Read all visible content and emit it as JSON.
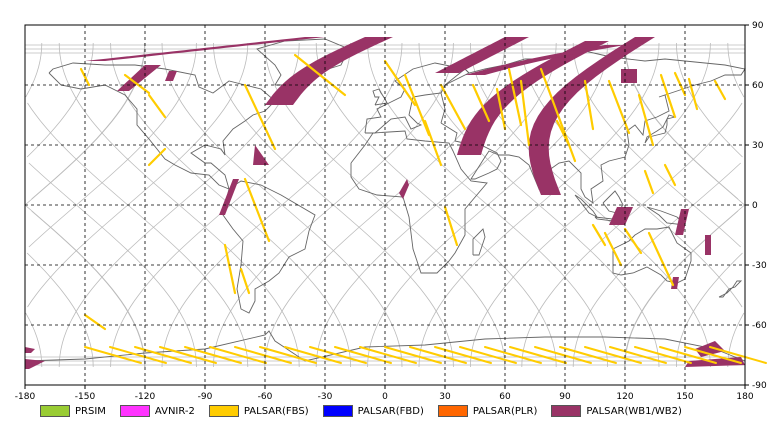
{
  "map": {
    "x_ticks": [
      "-180",
      "-150",
      "-120",
      "-90",
      "-60",
      "-30",
      "0",
      "30",
      "60",
      "90",
      "120",
      "150",
      "180"
    ],
    "y_ticks": [
      "90",
      "60",
      "30",
      "0",
      "-30",
      "-60",
      "-90"
    ],
    "grid_style": "dashed"
  },
  "legend": [
    {
      "label": "PRSIM",
      "color": "#99cc33"
    },
    {
      "label": "AVNIR-2",
      "color": "#ff33ff"
    },
    {
      "label": "PALSAR(FBS)",
      "color": "#ffcc00"
    },
    {
      "label": "PALSAR(FBD)",
      "color": "#0000ff"
    },
    {
      "label": "PALSAR(PLR)",
      "color": "#ff6600"
    },
    {
      "label": "PALSAR(WB1/WB2)",
      "color": "#993366"
    }
  ],
  "colors": {
    "orbit_track": "#bbbbbb",
    "coastline": "#666666",
    "wb_swath": "#993366",
    "fbs_swath": "#ffcc00"
  }
}
